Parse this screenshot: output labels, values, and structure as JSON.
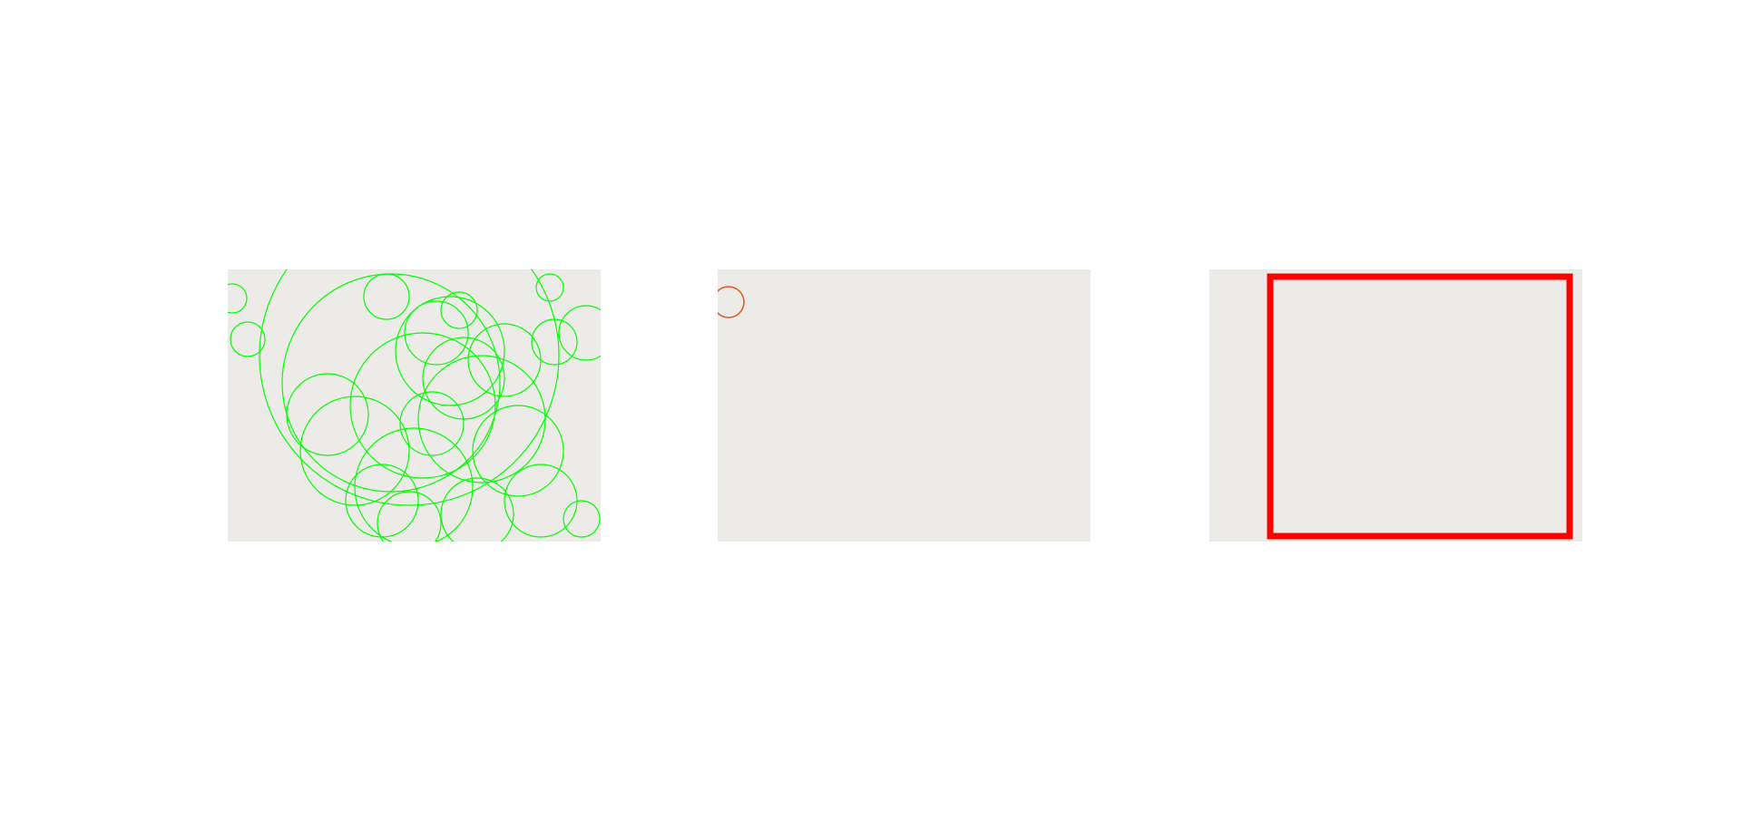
{
  "figure": {
    "panels": [
      {
        "id": "panel-1",
        "content": "climbing-wall-photo",
        "overlay": "keypoint-circles",
        "overlay_color": "#00ff00"
      },
      {
        "id": "panel-2",
        "content": "climbing-wall-photo",
        "overlay": "single-keypoint-circle",
        "overlay_color": "#e8541c"
      },
      {
        "id": "panel-3",
        "content": "climbing-wall-photo",
        "overlay": "bounding-box",
        "overlay_color": "#ff0000"
      }
    ],
    "colors": {
      "wall": "#ecebe8",
      "orange_panel_light": "#ffb21a",
      "orange_panel_dark": "#f59a10",
      "keypoint": "#00ff00",
      "bbox": "#ff0000"
    }
  }
}
